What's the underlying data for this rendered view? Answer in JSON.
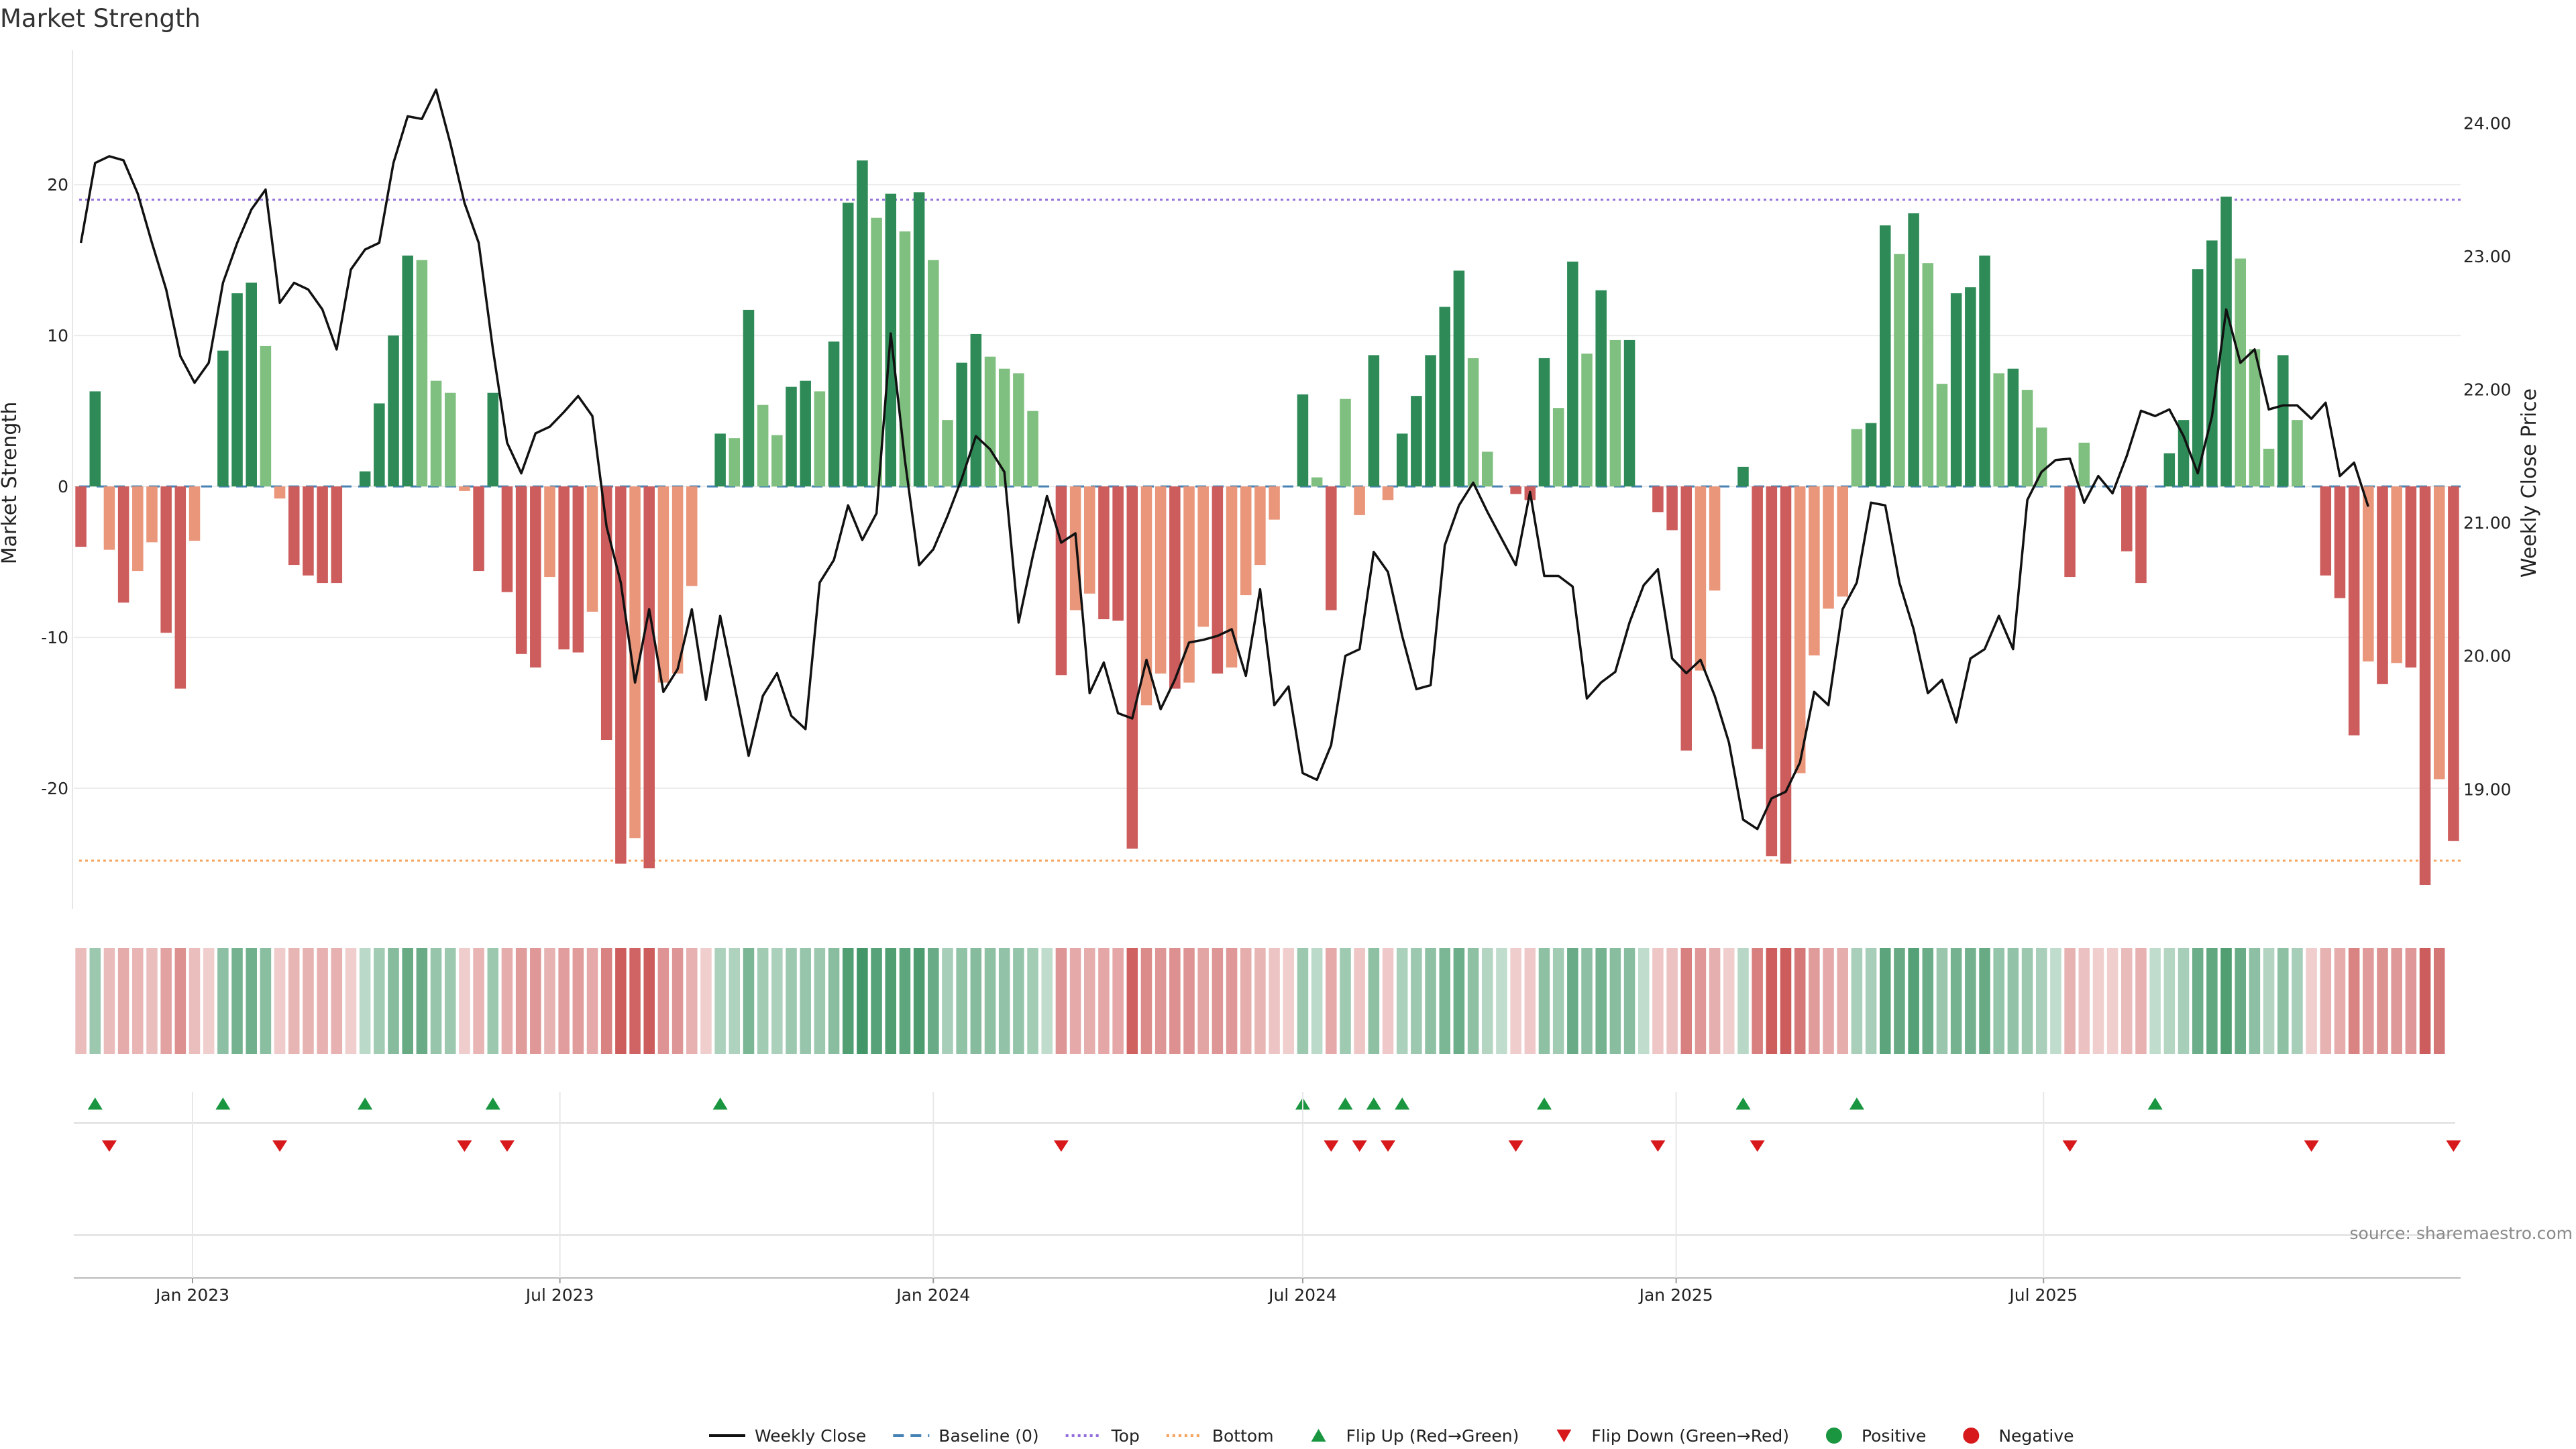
{
  "chart_data": {
    "type": "bar",
    "title": "Market Strength",
    "ylabel": "Market Strength",
    "ylabel_right": "Weekly Close Price",
    "ylim": [
      -28,
      28.5
    ],
    "ylim_right": [
      18.1,
      24.5
    ],
    "y_ticks": [
      -20,
      -10,
      0,
      10,
      20
    ],
    "y_ticks_right": [
      "19.00",
      "20.00",
      "21.00",
      "22.00",
      "23.00",
      "24.00"
    ],
    "x_start": "2022-11-07",
    "x_ticks": [
      {
        "label": "Jan 2023",
        "date": "2023-01-01"
      },
      {
        "label": "Jul 2023",
        "date": "2023-07-01"
      },
      {
        "label": "Jan 2024",
        "date": "2024-01-01"
      },
      {
        "label": "Jul 2024",
        "date": "2024-07-01"
      },
      {
        "label": "Jan 2025",
        "date": "2025-01-01"
      },
      {
        "label": "Jul 2025",
        "date": "2025-07-01"
      }
    ],
    "grid": true,
    "top_level": 19,
    "bottom_level": -24.8,
    "source": "source: sharemaestro.com",
    "colors": {
      "strong_positive": "#2e8b57",
      "weak_positive": "#7fbf7f",
      "strong_negative": "#cd5c5c",
      "weak_negative": "#e9967a",
      "top": "#9370db",
      "bottom": "#f4a460",
      "baseline": "#4682b4",
      "flip_up": "#1a9641",
      "flip_down": "#d7191c"
    },
    "strength": [
      -4,
      6.3,
      -4.2,
      -7.7,
      -5.6,
      -3.7,
      -9.7,
      -13.4,
      -3.6,
      0,
      9,
      12.8,
      13.5,
      9.3,
      -0.8,
      -5.2,
      -5.9,
      -6.4,
      -6.4,
      0,
      1,
      5.5,
      10,
      15.3,
      15,
      7,
      6.2,
      -0.3,
      -5.6,
      6.2,
      -7,
      -11.1,
      -12,
      -6,
      -10.8,
      -11,
      -8.3,
      -16.8,
      -25,
      -23.3,
      -25.3,
      -13,
      -12.4,
      -6.6,
      0,
      3.5,
      3.2,
      11.7,
      5.4,
      3.4,
      6.6,
      7,
      6.3,
      9.6,
      18.8,
      21.6,
      17.8,
      19.4,
      16.9,
      19.5,
      15,
      4.4,
      8.2,
      10.1,
      8.6,
      7.8,
      7.5,
      5,
      0,
      -12.5,
      -8.2,
      -7.1,
      -8.8,
      -8.9,
      -24,
      -14.5,
      -12.4,
      -13.4,
      -13,
      -9.3,
      -12.4,
      -12,
      -7.2,
      -5.2,
      -2.2,
      0,
      6.1,
      0.6,
      -8.2,
      5.8,
      -1.9,
      8.7,
      -0.9,
      3.5,
      6,
      8.7,
      11.9,
      14.3,
      8.5,
      2.3,
      0,
      -0.5,
      -0.9,
      8.5,
      5.2,
      14.9,
      8.8,
      13,
      9.7,
      9.7,
      0,
      -1.7,
      -2.9,
      -17.5,
      -12.2,
      -6.9,
      0,
      1.3,
      -17.4,
      -24.5,
      -25,
      -19,
      -11.2,
      -8.1,
      -7.3,
      3.8,
      4.2,
      17.3,
      15.4,
      18.1,
      14.8,
      6.8,
      12.8,
      13.2,
      15.3,
      7.5,
      7.8,
      6.4,
      3.9,
      0,
      -6,
      2.9,
      0,
      0,
      -4.3,
      -6.4,
      0,
      2.2,
      4.4,
      14.4,
      16.3,
      19.2,
      15.1,
      9.1,
      2.5,
      8.7,
      4.4,
      0,
      -5.9,
      -7.4,
      -16.5,
      -11.6,
      -13.1,
      -11.7,
      -12,
      -26.4,
      -19.4,
      -23.5
    ],
    "trend": [
      -1,
      1,
      -1,
      -1,
      -1,
      -1,
      -1,
      -1,
      -1,
      -1,
      1,
      1,
      1,
      1,
      -1,
      -1,
      -1,
      -1,
      -1,
      -1,
      1,
      1,
      1,
      1,
      1,
      1,
      1,
      -1,
      -1,
      1,
      -1,
      -1,
      -1,
      -1,
      -1,
      -1,
      -1,
      -1,
      -1,
      -1,
      -1,
      -1,
      -1,
      -1,
      -1,
      1,
      1,
      1,
      1,
      1,
      1,
      1,
      1,
      1,
      1,
      1,
      1,
      1,
      1,
      1,
      1,
      1,
      1,
      1,
      1,
      1,
      1,
      1,
      1,
      -1,
      -1,
      -1,
      -1,
      -1,
      -1,
      -1,
      -1,
      -1,
      -1,
      -1,
      -1,
      -1,
      -1,
      -1,
      -1,
      -1,
      1,
      1,
      -1,
      1,
      -1,
      1,
      -1,
      1,
      1,
      1,
      1,
      1,
      1,
      1,
      1,
      -1,
      -1,
      1,
      1,
      1,
      1,
      1,
      1,
      1,
      1,
      -1,
      -1,
      -1,
      -1,
      -1,
      -1,
      1,
      -1,
      -1,
      -1,
      -1,
      -1,
      -1,
      -1,
      1,
      1,
      1,
      1,
      1,
      1,
      1,
      1,
      1,
      1,
      1,
      1,
      1,
      1,
      1,
      -1,
      -1,
      -1,
      -1,
      -1,
      -1,
      1,
      1,
      1,
      1,
      1,
      1,
      1,
      1,
      1,
      1,
      1,
      -1,
      -1,
      -1,
      -1,
      -1,
      -1,
      -1,
      -1,
      -1,
      -1
    ],
    "price": [
      23.1,
      23.7,
      23.75,
      23.72,
      23.47,
      23.1,
      22.75,
      22.25,
      22.05,
      22.2,
      22.8,
      23.1,
      23.35,
      23.5,
      22.65,
      22.8,
      22.75,
      22.6,
      22.3,
      22.9,
      23.05,
      23.1,
      23.7,
      24.05,
      24.03,
      24.25,
      23.85,
      23.4,
      23.1,
      22.3,
      21.6,
      21.37,
      21.67,
      21.72,
      21.83,
      21.95,
      21.8,
      20.97,
      20.55,
      19.8,
      20.35,
      19.73,
      19.9,
      20.35,
      19.67,
      20.3,
      19.78,
      19.25,
      19.7,
      19.87,
      19.55,
      19.45,
      20.55,
      20.72,
      21.13,
      20.87,
      21.07,
      22.42,
      21.47,
      20.68,
      20.8,
      21.05,
      21.33,
      21.65,
      21.55,
      21.38,
      20.25,
      20.75,
      21.2,
      20.85,
      20.92,
      19.72,
      19.95,
      19.57,
      19.53,
      19.97,
      19.6,
      19.82,
      20.1,
      20.12,
      20.15,
      20.2,
      19.85,
      20.5,
      19.63,
      19.77,
      19.12,
      19.07,
      19.33,
      20,
      20.05,
      20.78,
      20.63,
      20.15,
      19.75,
      19.78,
      20.83,
      21.13,
      21.3,
      21.08,
      20.88,
      20.68,
      21.23,
      20.6,
      20.6,
      20.52,
      19.68,
      19.8,
      19.88,
      20.25,
      20.53,
      20.65,
      19.98,
      19.87,
      19.97,
      19.7,
      19.35,
      18.77,
      18.7,
      18.93,
      18.98,
      19.2,
      19.73,
      19.63,
      20.35,
      20.55,
      21.15,
      21.13,
      20.55,
      20.2,
      19.72,
      19.82,
      19.5,
      19.98,
      20.05,
      20.3,
      20.05,
      21.17,
      21.38,
      21.47,
      21.48,
      21.15,
      21.35,
      21.22,
      21.5,
      21.84,
      21.8,
      21.85,
      21.65,
      21.37,
      21.8,
      22.6,
      22.2,
      22.3,
      21.85,
      21.88,
      21.88,
      21.78,
      21.9,
      21.35,
      21.45,
      21.12
    ],
    "baseline": 0
  },
  "legend": [
    {
      "label": "Weekly Close",
      "kind": "line"
    },
    {
      "label": "Baseline (0)",
      "kind": "dashed"
    },
    {
      "label": "Top",
      "kind": "dotted-top"
    },
    {
      "label": "Bottom",
      "kind": "dotted-bottom"
    },
    {
      "label": "Flip Up (Red→Green)",
      "kind": "tri-up"
    },
    {
      "label": "Flip Down (Green→Red)",
      "kind": "tri-down"
    },
    {
      "label": "Positive",
      "kind": "dot-pos"
    },
    {
      "label": "Negative",
      "kind": "dot-neg"
    }
  ]
}
